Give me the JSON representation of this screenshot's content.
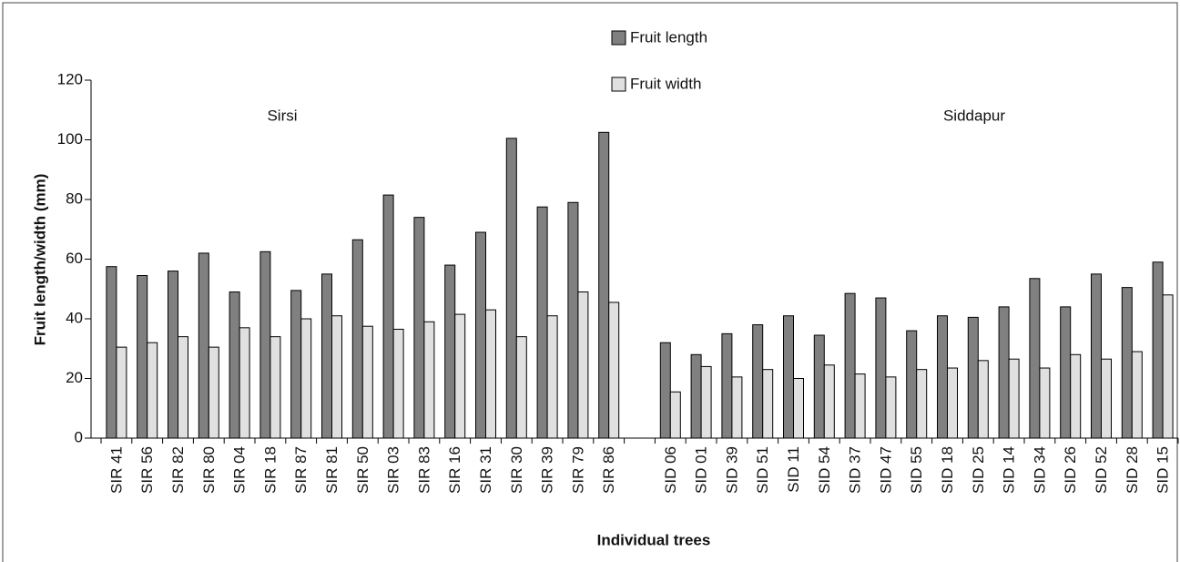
{
  "chart_data": {
    "type": "bar",
    "y_label": "Fruit length/width (mm)",
    "x_label": "Individual trees",
    "group_labels": [
      "Sirsi",
      "Siddapur"
    ],
    "categories": [
      "SIR 41",
      "SIR 56",
      "SIR 82",
      "SIR 80",
      "SIR 04",
      "SIR 18",
      "SIR 87",
      "SIR 81",
      "SIR 50",
      "SIR 03",
      "SIR 83",
      "SIR 16",
      "SIR 31",
      "SIR 30",
      "SIR 39",
      "SIR 79",
      "SIR 86",
      null,
      "SID 06",
      "SID 01",
      "SID 39",
      "SID 51",
      "SID 11",
      "SID 54",
      "SID 37",
      "SID 47",
      "SID 55",
      "SID 18",
      "SID 25",
      "SID 14",
      "SID 34",
      "SID 26",
      "SID 52",
      "SID 28",
      "SID 15"
    ],
    "series": [
      {
        "name": "Fruit length",
        "color": "#808080",
        "values": [
          57.5,
          54.5,
          56,
          62,
          49,
          62.5,
          49.5,
          55,
          66.5,
          81.5,
          74,
          58,
          69,
          100.5,
          77.5,
          79,
          102.5,
          null,
          32,
          28,
          35,
          38,
          41,
          34.5,
          48.5,
          47,
          36,
          41,
          40.5,
          44,
          53.5,
          44,
          55,
          50.5,
          59
        ]
      },
      {
        "name": "Fruit width",
        "color": "#e0e0e0",
        "values": [
          30.5,
          32,
          34,
          30.5,
          37,
          34,
          40,
          41,
          37.5,
          36.5,
          39,
          41.5,
          43,
          34,
          41,
          49,
          45.5,
          null,
          15.5,
          24,
          20.5,
          23,
          20,
          24.5,
          21.5,
          20.5,
          23,
          23.5,
          26,
          26.5,
          23.5,
          28,
          26.5,
          29,
          48
        ]
      }
    ],
    "ylim": [
      0,
      120
    ],
    "yticks": [
      0,
      20,
      40,
      60,
      80,
      100,
      120
    ],
    "legend": "top"
  }
}
